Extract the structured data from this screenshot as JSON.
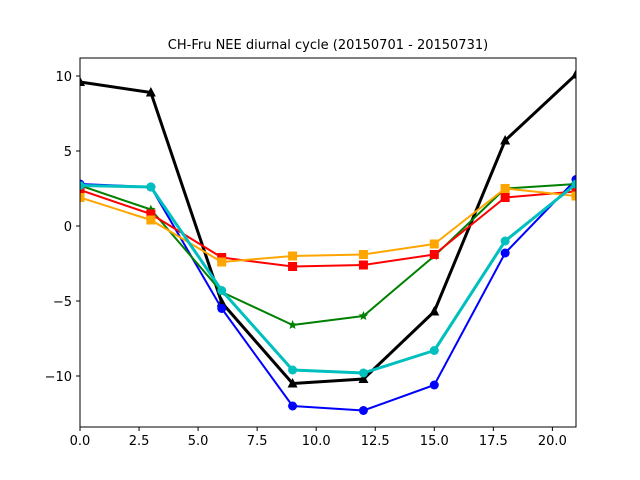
{
  "chart_data": {
    "type": "line",
    "title": "CH-Fru NEE diurnal cycle (20150701 - 20150731)",
    "xlabel": "",
    "ylabel": "",
    "xlim": [
      0,
      21
    ],
    "ylim": [
      -13.4,
      11.2
    ],
    "xticks": [
      0.0,
      2.5,
      5.0,
      7.5,
      10.0,
      12.5,
      15.0,
      17.5,
      20.0
    ],
    "xtick_labels": [
      "0.0",
      "2.5",
      "5.0",
      "7.5",
      "10.0",
      "12.5",
      "15.0",
      "17.5",
      "20.0"
    ],
    "yticks": [
      10,
      5,
      0,
      -5,
      -10
    ],
    "ytick_labels": [
      "10",
      "5",
      "0",
      "−5",
      "−10"
    ],
    "grid": false,
    "x": [
      0,
      3,
      6,
      9,
      12,
      15,
      18,
      21
    ],
    "series": [
      {
        "color": "#000000",
        "marker": "triangle",
        "line_width": 3,
        "values": [
          9.6,
          8.9,
          -5.1,
          -10.5,
          -10.2,
          -5.7,
          5.7,
          10.1
        ]
      },
      {
        "color": "#0000ff",
        "marker": "circle",
        "line_width": 2,
        "values": [
          2.8,
          2.6,
          -5.5,
          -12.0,
          -12.3,
          -10.6,
          -1.8,
          3.1
        ]
      },
      {
        "color": "#008000",
        "marker": "star",
        "line_width": 2,
        "values": [
          2.7,
          1.1,
          -4.4,
          -6.6,
          -6.0,
          -2.0,
          2.5,
          2.8
        ]
      },
      {
        "color": "#ff0000",
        "marker": "square",
        "line_width": 2,
        "values": [
          2.4,
          0.8,
          -2.1,
          -2.7,
          -2.6,
          -1.9,
          1.9,
          2.3
        ]
      },
      {
        "color": "#ffa500",
        "marker": "square",
        "line_width": 2,
        "values": [
          1.9,
          0.4,
          -2.4,
          -2.0,
          -1.9,
          -1.2,
          2.5,
          2.0
        ]
      },
      {
        "color": "#00bfbf",
        "marker": "circle",
        "line_width": 3,
        "values": [
          2.7,
          2.6,
          -4.3,
          -9.6,
          -9.8,
          -8.3,
          -1.0,
          2.8
        ]
      }
    ]
  }
}
